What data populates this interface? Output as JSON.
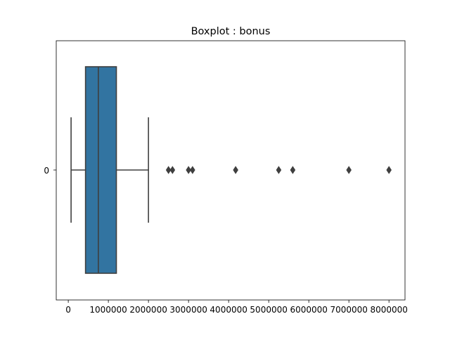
{
  "chart_data": {
    "type": "boxplot",
    "orientation": "horizontal",
    "title": "Boxplot : bonus",
    "xlabel": "",
    "ylabel": "",
    "category_label": "0",
    "xlim": [
      -300000,
      8400000
    ],
    "x_ticks": [
      0,
      1000000,
      2000000,
      3000000,
      4000000,
      5000000,
      6000000,
      7000000,
      8000000
    ],
    "x_tick_labels": [
      "0",
      "1000000",
      "2000000",
      "3000000",
      "4000000",
      "5000000",
      "6000000",
      "7000000",
      "8000000"
    ],
    "box": {
      "whisker_low": 70000,
      "q1": 430000,
      "median": 750000,
      "q3": 1200000,
      "whisker_high": 2000000
    },
    "outliers": [
      2500000,
      2600000,
      3000000,
      3100000,
      4175000,
      5249999,
      5600000,
      7000000,
      8000000
    ],
    "box_color": "#3274a1",
    "line_color": "#3f3f3f",
    "grid": false,
    "legend": "none"
  }
}
